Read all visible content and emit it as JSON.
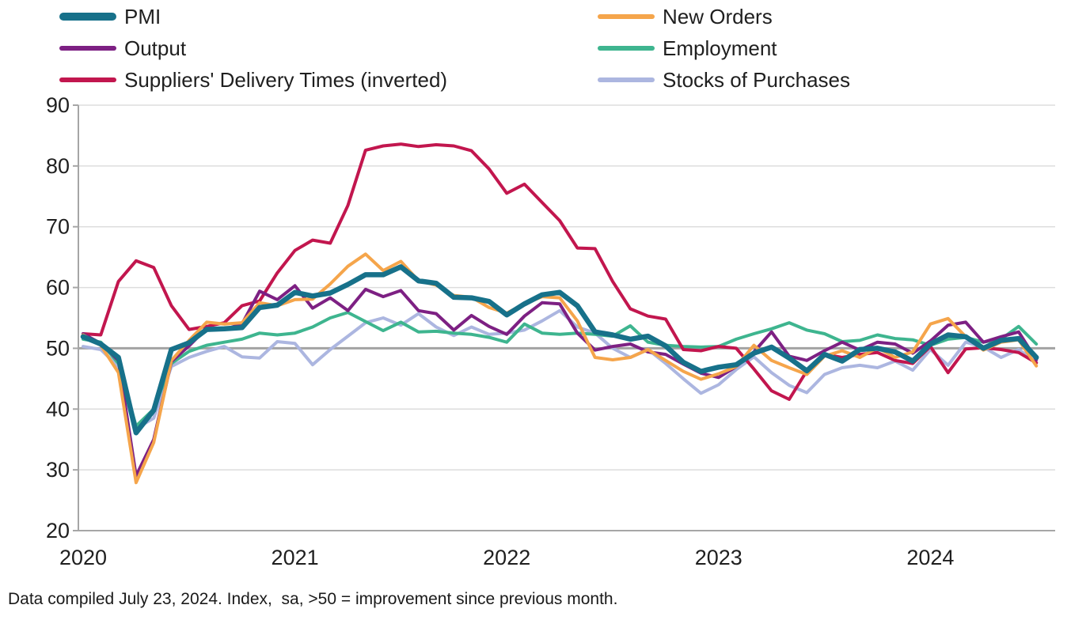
{
  "legend": {
    "column1": [
      "PMI",
      "Output",
      "Suppliers' Delivery Times (inverted)"
    ],
    "column2": [
      "New Orders",
      "Employment",
      "Stocks of Purchases"
    ]
  },
  "footnote": "Data compiled July 23, 2024. Index,  sa, >50 = improvement since previous month.",
  "style_colors": {
    "text": "#1f1f1f",
    "axis": "#a6a6a6",
    "gridline": "#dddddd",
    "reference_line": "#a3a3a3"
  },
  "chart_data": {
    "type": "line",
    "title": "",
    "xlabel": "",
    "ylabel": "",
    "x_start": "2020-01",
    "x_end": "2024-07",
    "x_frequency": "monthly",
    "x_tick_labels": [
      "2020",
      "2021",
      "2022",
      "2023",
      "2024"
    ],
    "ylim": [
      20,
      90
    ],
    "y_ticks": [
      20,
      30,
      40,
      50,
      60,
      70,
      80,
      90
    ],
    "reference_line_y": 50,
    "grid": true,
    "legend_position": "top",
    "series": [
      {
        "name": "PMI",
        "color": "#17718a",
        "line_width": 6.5,
        "values": [
          51.9,
          50.7,
          48.5,
          36.1,
          39.8,
          49.8,
          50.9,
          53.1,
          53.2,
          53.4,
          56.7,
          57.1,
          59.2,
          58.6,
          59.1,
          60.5,
          62.1,
          62.1,
          63.4,
          61.1,
          60.7,
          58.4,
          58.3,
          57.7,
          55.5,
          57.3,
          58.8,
          59.2,
          57.0,
          52.7,
          52.2,
          51.5,
          52.0,
          50.4,
          47.7,
          46.2,
          46.9,
          47.3,
          49.2,
          50.2,
          48.4,
          46.3,
          49.0,
          47.9,
          49.8,
          50.0,
          49.4,
          47.9,
          50.7,
          52.2,
          51.9,
          50.0,
          51.3,
          51.6,
          48.5
        ]
      },
      {
        "name": "New Orders",
        "color": "#f5a54b",
        "line_width": 4,
        "values": [
          52.2,
          50.5,
          46.0,
          27.9,
          34.5,
          48.0,
          51.3,
          54.3,
          54.0,
          54.2,
          57.5,
          57.0,
          58.0,
          58.1,
          60.6,
          63.5,
          65.5,
          62.8,
          64.3,
          61.1,
          60.4,
          58.7,
          58.4,
          56.7,
          55.8,
          57.3,
          58.5,
          58.3,
          54.5,
          48.5,
          48.1,
          48.5,
          49.8,
          48.0,
          46.2,
          44.9,
          45.8,
          47.0,
          50.5,
          48.0,
          46.8,
          45.7,
          48.7,
          49.6,
          48.5,
          50.1,
          48.5,
          49.4,
          54.0,
          54.9,
          51.9,
          49.7,
          51.0,
          51.4,
          47.1
        ]
      },
      {
        "name": "Output",
        "color": "#7d2083",
        "line_width": 4,
        "values": [
          52.4,
          50.8,
          48.0,
          29.0,
          35.0,
          47.8,
          50.4,
          53.3,
          53.1,
          54.0,
          59.4,
          58.0,
          60.3,
          56.6,
          58.3,
          56.2,
          59.7,
          58.5,
          59.5,
          56.2,
          55.7,
          53.0,
          55.4,
          53.6,
          52.3,
          55.3,
          57.5,
          57.3,
          52.5,
          49.7,
          50.3,
          50.7,
          49.4,
          49.0,
          47.4,
          45.9,
          45.2,
          47.0,
          49.4,
          52.7,
          48.7,
          48.0,
          49.6,
          51.0,
          49.7,
          51.0,
          50.7,
          49.2,
          51.2,
          53.8,
          54.3,
          51.0,
          51.9,
          52.7,
          48.1
        ]
      },
      {
        "name": "Employment",
        "color": "#3eb58f",
        "line_width": 4,
        "values": [
          51.5,
          51.0,
          47.5,
          37.2,
          40.0,
          47.5,
          49.5,
          50.5,
          51.0,
          51.5,
          52.5,
          52.2,
          52.5,
          53.5,
          55.0,
          55.9,
          54.4,
          52.9,
          54.3,
          52.7,
          52.8,
          52.5,
          52.3,
          51.8,
          51.0,
          54.0,
          52.5,
          52.3,
          52.5,
          52.3,
          52.0,
          53.7,
          51.0,
          50.5,
          50.3,
          50.2,
          50.3,
          51.5,
          52.4,
          53.2,
          54.2,
          53.0,
          52.4,
          51.1,
          51.3,
          52.2,
          51.6,
          51.4,
          50.5,
          51.5,
          51.8,
          51.0,
          51.5,
          53.6,
          50.7
        ]
      },
      {
        "name": "Suppliers' Delivery Times (inverted)",
        "color": "#c2164e",
        "line_width": 4,
        "values": [
          52.4,
          52.2,
          61.0,
          64.4,
          63.3,
          57.0,
          53.1,
          53.6,
          54.2,
          57.0,
          57.8,
          62.4,
          66.1,
          67.8,
          67.3,
          73.5,
          82.6,
          83.3,
          83.6,
          83.2,
          83.5,
          83.3,
          82.5,
          79.5,
          75.5,
          77.0,
          74.0,
          71.0,
          66.5,
          66.4,
          61.0,
          56.5,
          55.3,
          54.8,
          49.8,
          49.6,
          50.3,
          50.0,
          46.6,
          43.0,
          41.6,
          46.3,
          49.0,
          48.5,
          49.0,
          49.3,
          48.0,
          47.5,
          50.3,
          46.0,
          49.9,
          50.1,
          49.8,
          49.3,
          47.6
        ]
      },
      {
        "name": "Stocks of Purchases",
        "color": "#acb6e0",
        "line_width": 4,
        "values": [
          50.3,
          49.8,
          47.0,
          36.8,
          38.5,
          47.0,
          48.5,
          49.5,
          50.3,
          48.6,
          48.4,
          51.1,
          50.8,
          47.3,
          49.8,
          52.0,
          54.2,
          55.0,
          53.8,
          55.7,
          53.5,
          52.1,
          53.5,
          52.3,
          52.5,
          53.0,
          54.5,
          56.2,
          53.5,
          52.5,
          50.0,
          48.5,
          49.8,
          47.5,
          45.0,
          42.6,
          44.0,
          46.5,
          48.6,
          46.0,
          43.9,
          42.7,
          45.7,
          46.8,
          47.2,
          46.8,
          47.9,
          46.4,
          49.8,
          47.2,
          51.0,
          50.2,
          48.5,
          49.8,
          47.7
        ]
      }
    ]
  }
}
